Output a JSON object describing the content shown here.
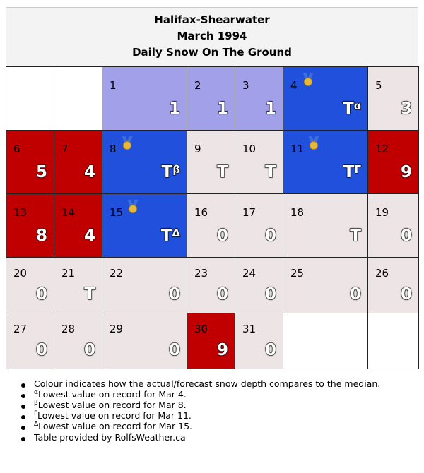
{
  "title": {
    "station": "Halifax-Shearwater",
    "period": "March 1994",
    "subject": "Daily Snow On The Ground"
  },
  "colors": {
    "white": "#ffffff",
    "near_median": "#ede4e6",
    "lighter_blue": "#a2a0e8",
    "record_low_blue": "#2050dc",
    "above_median_red": "#c00000"
  },
  "weeks": [
    [
      {
        "day": "",
        "value": "",
        "color": "white"
      },
      {
        "day": "",
        "value": "",
        "color": "white"
      },
      {
        "day": "1",
        "value": "1",
        "color": "purple"
      },
      {
        "day": "2",
        "value": "1",
        "color": "purple"
      },
      {
        "day": "3",
        "value": "1",
        "color": "purple"
      },
      {
        "day": "4",
        "value": "T",
        "note": "α",
        "color": "blue",
        "medal": "medal-icon"
      },
      {
        "day": "5",
        "value": "3",
        "color": "light"
      }
    ],
    [
      {
        "day": "6",
        "value": "5",
        "color": "red"
      },
      {
        "day": "7",
        "value": "4",
        "color": "red"
      },
      {
        "day": "8",
        "value": "T",
        "note": "β",
        "color": "blue",
        "medal": "medal-icon"
      },
      {
        "day": "9",
        "value": "T",
        "color": "light"
      },
      {
        "day": "10",
        "value": "T",
        "color": "light"
      },
      {
        "day": "11",
        "value": "T",
        "note": "Γ",
        "color": "blue",
        "medal": "medal-icon"
      },
      {
        "day": "12",
        "value": "9",
        "color": "red"
      }
    ],
    [
      {
        "day": "13",
        "value": "8",
        "color": "red"
      },
      {
        "day": "14",
        "value": "4",
        "color": "red"
      },
      {
        "day": "15",
        "value": "T",
        "note": "Δ",
        "color": "blue",
        "medal": "medal-icon"
      },
      {
        "day": "16",
        "value": "0",
        "color": "light"
      },
      {
        "day": "17",
        "value": "0",
        "color": "light"
      },
      {
        "day": "18",
        "value": "T",
        "color": "light"
      },
      {
        "day": "19",
        "value": "0",
        "color": "light"
      }
    ],
    [
      {
        "day": "20",
        "value": "0",
        "color": "light"
      },
      {
        "day": "21",
        "value": "T",
        "color": "light"
      },
      {
        "day": "22",
        "value": "0",
        "color": "light"
      },
      {
        "day": "23",
        "value": "0",
        "color": "light"
      },
      {
        "day": "24",
        "value": "0",
        "color": "light"
      },
      {
        "day": "25",
        "value": "0",
        "color": "light"
      },
      {
        "day": "26",
        "value": "0",
        "color": "light"
      }
    ],
    [
      {
        "day": "27",
        "value": "0",
        "color": "light"
      },
      {
        "day": "28",
        "value": "0",
        "color": "light"
      },
      {
        "day": "29",
        "value": "0",
        "color": "light"
      },
      {
        "day": "30",
        "value": "9",
        "color": "red"
      },
      {
        "day": "31",
        "value": "0",
        "color": "light"
      },
      {
        "day": "",
        "value": "",
        "color": "white"
      },
      {
        "day": "",
        "value": "",
        "color": "white"
      }
    ]
  ],
  "notes": {
    "colour": "Colour indicates how the actual/forecast snow depth compares to the median.",
    "alpha_mark": "α",
    "alpha_text": "Lowest value on record for Mar 4.",
    "beta_mark": "β",
    "beta_text": "Lowest value on record for Mar 8.",
    "gamma_mark": "Γ",
    "gamma_text": "Lowest value on record for Mar 11.",
    "delta_mark": "Δ",
    "delta_text": "Lowest value on record for Mar 15.",
    "credit": "Table provided by RolfsWeather.ca"
  }
}
